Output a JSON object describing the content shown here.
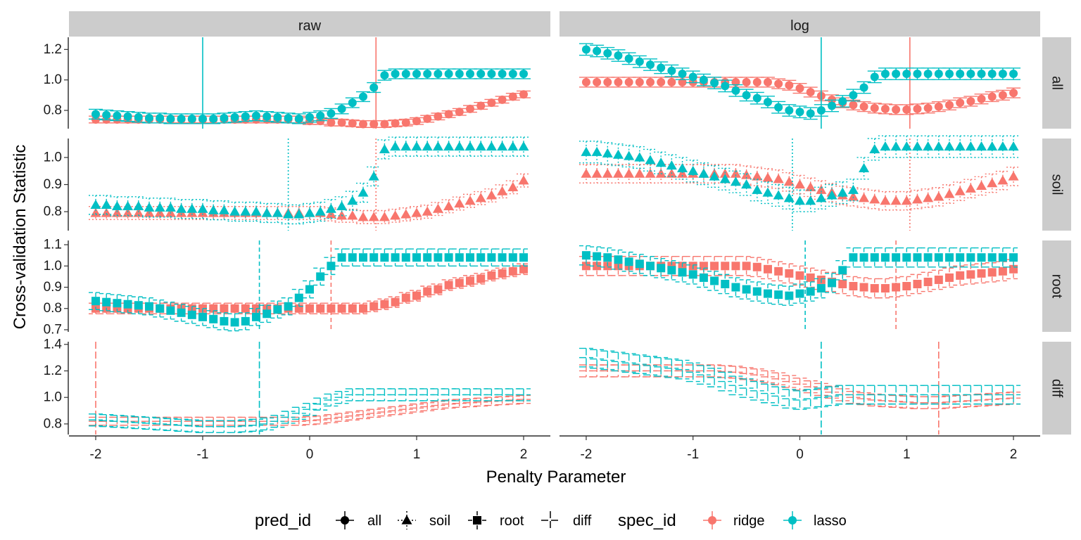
{
  "chart_data": {
    "type": "scatter",
    "xlabel": "Penalty Parameter",
    "ylabel": "Cross-validation Statistic",
    "xlim": [
      -2.25,
      2.25
    ],
    "x_ticks": [
      -2,
      -1,
      0,
      1,
      2
    ],
    "columns": [
      "raw",
      "log"
    ],
    "rows": [
      "all",
      "soil",
      "root",
      "diff"
    ],
    "row_ylims": {
      "all": [
        0.68,
        1.28
      ],
      "soil": [
        0.73,
        1.07
      ],
      "root": [
        0.69,
        1.12
      ],
      "diff": [
        0.72,
        1.42
      ]
    },
    "row_yticks": {
      "all": [
        0.8,
        1.0,
        1.2
      ],
      "soil": [
        0.8,
        0.9,
        1.0
      ],
      "root": [
        0.7,
        0.8,
        0.9,
        1.0,
        1.1
      ],
      "diff": [
        0.8,
        1.0,
        1.2,
        1.4
      ]
    },
    "row_ytick_labels": {
      "all": [
        "0.8",
        "1.0",
        "1.2"
      ],
      "soil": [
        "0.8",
        "0.9",
        "1.0"
      ],
      "root": [
        "0.7",
        "0.8",
        "0.9",
        "1.0",
        "1.1"
      ],
      "diff": [
        "0.8",
        "1.0",
        "1.2",
        "1.4"
      ]
    },
    "x_tick_labels": [
      "-2",
      "-1",
      "0",
      "1",
      "2"
    ],
    "shapes": {
      "all": "circle",
      "soil": "triangle",
      "root": "square",
      "diff": "none"
    },
    "line_styles": {
      "all": "solid",
      "soil": "dotted",
      "root": "dashed",
      "diff": "longdash"
    },
    "series_colors": {
      "ridge": "#F8766D",
      "lasso": "#00BFC4"
    },
    "series": [
      {
        "name": "ridge",
        "model": "raw",
        "pred": "all",
        "x_start": -2,
        "x_step": 0.1,
        "se": 0.022,
        "values": [
          0.74,
          0.74,
          0.74,
          0.74,
          0.74,
          0.74,
          0.74,
          0.74,
          0.74,
          0.74,
          0.74,
          0.74,
          0.74,
          0.74,
          0.74,
          0.74,
          0.74,
          0.74,
          0.74,
          0.74,
          0.73,
          0.73,
          0.72,
          0.72,
          0.715,
          0.71,
          0.71,
          0.71,
          0.715,
          0.72,
          0.73,
          0.745,
          0.76,
          0.775,
          0.79,
          0.81,
          0.83,
          0.85,
          0.87,
          0.89,
          0.905
        ],
        "optimum": 0.62
      },
      {
        "name": "lasso",
        "model": "raw",
        "pred": "all",
        "x_start": -2,
        "x_step": 0.1,
        "se": 0.032,
        "values": [
          0.775,
          0.77,
          0.765,
          0.76,
          0.755,
          0.75,
          0.75,
          0.745,
          0.745,
          0.745,
          0.745,
          0.745,
          0.75,
          0.755,
          0.76,
          0.765,
          0.76,
          0.755,
          0.75,
          0.745,
          0.755,
          0.765,
          0.78,
          0.81,
          0.85,
          0.89,
          0.95,
          1.03,
          1.04,
          1.04,
          1.04,
          1.04,
          1.04,
          1.04,
          1.04,
          1.04,
          1.04,
          1.04,
          1.04,
          1.04,
          1.04
        ],
        "optimum": -1.0
      },
      {
        "name": "ridge",
        "model": "log",
        "pred": "all",
        "x_start": -2,
        "x_step": 0.1,
        "se": 0.032,
        "values": [
          0.985,
          0.985,
          0.985,
          0.985,
          0.985,
          0.985,
          0.985,
          0.985,
          0.985,
          0.985,
          0.985,
          0.985,
          0.985,
          0.985,
          0.985,
          0.985,
          0.985,
          0.985,
          0.975,
          0.965,
          0.945,
          0.92,
          0.895,
          0.87,
          0.85,
          0.835,
          0.825,
          0.815,
          0.81,
          0.805,
          0.805,
          0.81,
          0.815,
          0.825,
          0.835,
          0.85,
          0.86,
          0.875,
          0.89,
          0.9,
          0.915
        ],
        "optimum": 1.03
      },
      {
        "name": "lasso",
        "model": "log",
        "pred": "all",
        "x_start": -2,
        "x_step": 0.1,
        "se": 0.038,
        "values": [
          1.2,
          1.19,
          1.175,
          1.16,
          1.14,
          1.12,
          1.1,
          1.08,
          1.06,
          1.04,
          1.02,
          1.0,
          0.98,
          0.96,
          0.93,
          0.9,
          0.88,
          0.855,
          0.82,
          0.8,
          0.79,
          0.78,
          0.8,
          0.83,
          0.86,
          0.9,
          0.95,
          1.02,
          1.04,
          1.04,
          1.04,
          1.04,
          1.04,
          1.04,
          1.04,
          1.04,
          1.04,
          1.04,
          1.04,
          1.04,
          1.04
        ],
        "optimum": 0.2
      },
      {
        "name": "ridge",
        "model": "raw",
        "pred": "soil",
        "x_start": -2,
        "x_step": 0.1,
        "se": 0.024,
        "values": [
          0.795,
          0.795,
          0.795,
          0.795,
          0.795,
          0.795,
          0.795,
          0.795,
          0.795,
          0.795,
          0.795,
          0.795,
          0.795,
          0.795,
          0.795,
          0.795,
          0.795,
          0.795,
          0.795,
          0.795,
          0.795,
          0.795,
          0.79,
          0.785,
          0.785,
          0.78,
          0.78,
          0.78,
          0.785,
          0.79,
          0.795,
          0.8,
          0.81,
          0.82,
          0.83,
          0.84,
          0.85,
          0.86,
          0.875,
          0.89,
          0.915
        ],
        "optimum": 0.62
      },
      {
        "name": "lasso",
        "model": "raw",
        "pred": "soil",
        "x_start": -2,
        "x_step": 0.1,
        "se": 0.035,
        "values": [
          0.825,
          0.825,
          0.82,
          0.82,
          0.82,
          0.815,
          0.815,
          0.815,
          0.81,
          0.81,
          0.81,
          0.805,
          0.805,
          0.8,
          0.8,
          0.8,
          0.795,
          0.795,
          0.79,
          0.79,
          0.795,
          0.8,
          0.81,
          0.82,
          0.84,
          0.87,
          0.93,
          1.03,
          1.04,
          1.04,
          1.04,
          1.04,
          1.04,
          1.04,
          1.04,
          1.04,
          1.04,
          1.04,
          1.04,
          1.04,
          1.04
        ],
        "optimum": -0.2
      },
      {
        "name": "ridge",
        "model": "log",
        "pred": "soil",
        "x_start": -2,
        "x_step": 0.1,
        "se": 0.034,
        "values": [
          0.94,
          0.94,
          0.94,
          0.94,
          0.94,
          0.94,
          0.94,
          0.94,
          0.94,
          0.94,
          0.94,
          0.94,
          0.94,
          0.94,
          0.94,
          0.935,
          0.93,
          0.925,
          0.92,
          0.91,
          0.9,
          0.89,
          0.88,
          0.87,
          0.86,
          0.855,
          0.85,
          0.845,
          0.84,
          0.84,
          0.84,
          0.845,
          0.85,
          0.855,
          0.865,
          0.875,
          0.885,
          0.895,
          0.905,
          0.915,
          0.93
        ],
        "optimum": 1.03
      },
      {
        "name": "lasso",
        "model": "log",
        "pred": "soil",
        "x_start": -2,
        "x_step": 0.1,
        "se": 0.04,
        "values": [
          1.02,
          1.02,
          1.015,
          1.01,
          1.005,
          1.0,
          0.99,
          0.98,
          0.97,
          0.96,
          0.95,
          0.94,
          0.93,
          0.92,
          0.91,
          0.9,
          0.88,
          0.87,
          0.86,
          0.85,
          0.84,
          0.84,
          0.85,
          0.86,
          0.87,
          0.88,
          0.96,
          1.03,
          1.04,
          1.04,
          1.04,
          1.04,
          1.04,
          1.04,
          1.04,
          1.04,
          1.04,
          1.04,
          1.04,
          1.04,
          1.04
        ],
        "optimum": -0.07
      },
      {
        "name": "ridge",
        "model": "raw",
        "pred": "root",
        "x_start": -2,
        "x_step": 0.1,
        "se": 0.025,
        "values": [
          0.8,
          0.8,
          0.8,
          0.8,
          0.8,
          0.8,
          0.8,
          0.8,
          0.8,
          0.8,
          0.8,
          0.8,
          0.8,
          0.8,
          0.8,
          0.8,
          0.8,
          0.8,
          0.8,
          0.8,
          0.8,
          0.8,
          0.8,
          0.8,
          0.8,
          0.8,
          0.81,
          0.82,
          0.83,
          0.85,
          0.86,
          0.88,
          0.89,
          0.91,
          0.92,
          0.93,
          0.94,
          0.955,
          0.965,
          0.975,
          0.985
        ],
        "optimum": 0.2
      },
      {
        "name": "lasso",
        "model": "raw",
        "pred": "root",
        "x_start": -2,
        "x_step": 0.1,
        "se": 0.04,
        "values": [
          0.835,
          0.83,
          0.825,
          0.82,
          0.815,
          0.81,
          0.8,
          0.79,
          0.78,
          0.77,
          0.76,
          0.75,
          0.74,
          0.735,
          0.74,
          0.76,
          0.775,
          0.795,
          0.81,
          0.85,
          0.89,
          0.95,
          1.0,
          1.04,
          1.04,
          1.04,
          1.04,
          1.04,
          1.04,
          1.04,
          1.04,
          1.04,
          1.04,
          1.04,
          1.04,
          1.04,
          1.04,
          1.04,
          1.04,
          1.04,
          1.04
        ],
        "optimum": -0.47
      },
      {
        "name": "ridge",
        "model": "log",
        "pred": "root",
        "x_start": -2,
        "x_step": 0.1,
        "se": 0.045,
        "values": [
          1.0,
          1.0,
          1.0,
          1.0,
          1.0,
          1.0,
          1.0,
          1.0,
          1.0,
          1.0,
          1.0,
          1.0,
          1.0,
          1.0,
          1.0,
          1.0,
          0.995,
          0.985,
          0.975,
          0.965,
          0.955,
          0.945,
          0.935,
          0.925,
          0.915,
          0.905,
          0.9,
          0.895,
          0.895,
          0.9,
          0.905,
          0.915,
          0.925,
          0.935,
          0.945,
          0.955,
          0.96,
          0.965,
          0.97,
          0.975,
          0.985
        ],
        "optimum": 0.9
      },
      {
        "name": "lasso",
        "model": "log",
        "pred": "root",
        "x_start": -2,
        "x_step": 0.1,
        "se": 0.045,
        "values": [
          1.05,
          1.045,
          1.04,
          1.03,
          1.02,
          1.01,
          1.0,
          0.99,
          0.98,
          0.97,
          0.96,
          0.945,
          0.93,
          0.915,
          0.9,
          0.89,
          0.88,
          0.87,
          0.865,
          0.86,
          0.87,
          0.88,
          0.895,
          0.92,
          0.98,
          1.04,
          1.04,
          1.04,
          1.04,
          1.04,
          1.04,
          1.04,
          1.04,
          1.04,
          1.04,
          1.04,
          1.04,
          1.04,
          1.04,
          1.04,
          1.04
        ],
        "optimum": 0.05
      },
      {
        "name": "ridge",
        "model": "raw",
        "pred": "diff",
        "x_start": -2,
        "x_step": 0.1,
        "se": 0.03,
        "values": [
          0.82,
          0.82,
          0.82,
          0.82,
          0.82,
          0.82,
          0.82,
          0.82,
          0.82,
          0.82,
          0.82,
          0.82,
          0.82,
          0.82,
          0.82,
          0.82,
          0.82,
          0.82,
          0.82,
          0.82,
          0.825,
          0.83,
          0.84,
          0.85,
          0.86,
          0.87,
          0.88,
          0.89,
          0.9,
          0.91,
          0.92,
          0.93,
          0.94,
          0.95,
          0.955,
          0.96,
          0.965,
          0.97,
          0.975,
          0.98,
          0.985
        ],
        "optimum": -2.0
      },
      {
        "name": "lasso",
        "model": "raw",
        "pred": "diff",
        "x_start": -2,
        "x_step": 0.1,
        "se": 0.045,
        "values": [
          0.83,
          0.825,
          0.82,
          0.815,
          0.81,
          0.805,
          0.8,
          0.795,
          0.79,
          0.785,
          0.78,
          0.78,
          0.78,
          0.78,
          0.785,
          0.79,
          0.8,
          0.82,
          0.85,
          0.88,
          0.91,
          0.95,
          0.98,
          1.0,
          1.02,
          1.02,
          1.02,
          1.02,
          1.02,
          1.02,
          1.02,
          1.02,
          1.02,
          1.02,
          1.02,
          1.02,
          1.02,
          1.02,
          1.02,
          1.02,
          1.02
        ],
        "optimum": -0.47
      },
      {
        "name": "ridge",
        "model": "log",
        "pred": "diff",
        "x_start": -2,
        "x_step": 0.1,
        "se": 0.045,
        "values": [
          1.2,
          1.2,
          1.2,
          1.2,
          1.2,
          1.2,
          1.2,
          1.2,
          1.2,
          1.2,
          1.2,
          1.2,
          1.2,
          1.195,
          1.19,
          1.18,
          1.17,
          1.155,
          1.14,
          1.12,
          1.1,
          1.08,
          1.06,
          1.04,
          1.02,
          1.0,
          0.99,
          0.98,
          0.975,
          0.97,
          0.965,
          0.96,
          0.96,
          0.96,
          0.965,
          0.97,
          0.975,
          0.98,
          0.985,
          0.99,
          0.995
        ],
        "optimum": 1.3
      },
      {
        "name": "lasso",
        "model": "log",
        "pred": "diff",
        "x_start": -2,
        "x_step": 0.1,
        "se": 0.07,
        "values": [
          1.3,
          1.29,
          1.28,
          1.27,
          1.26,
          1.25,
          1.24,
          1.23,
          1.22,
          1.21,
          1.19,
          1.17,
          1.15,
          1.12,
          1.09,
          1.07,
          1.05,
          1.03,
          1.01,
          0.99,
          0.98,
          0.99,
          1.0,
          1.01,
          1.02,
          1.02,
          1.02,
          1.02,
          1.02,
          1.02,
          1.02,
          1.02,
          1.02,
          1.02,
          1.02,
          1.02,
          1.02,
          1.02,
          1.02,
          1.02,
          1.02
        ],
        "optimum": 0.2
      }
    ],
    "legend": {
      "position": "bottom",
      "pred_title": "pred_id",
      "pred_items": [
        "all",
        "soil",
        "root",
        "diff"
      ],
      "spec_title": "spec_id",
      "spec_items": [
        "ridge",
        "lasso"
      ]
    }
  }
}
